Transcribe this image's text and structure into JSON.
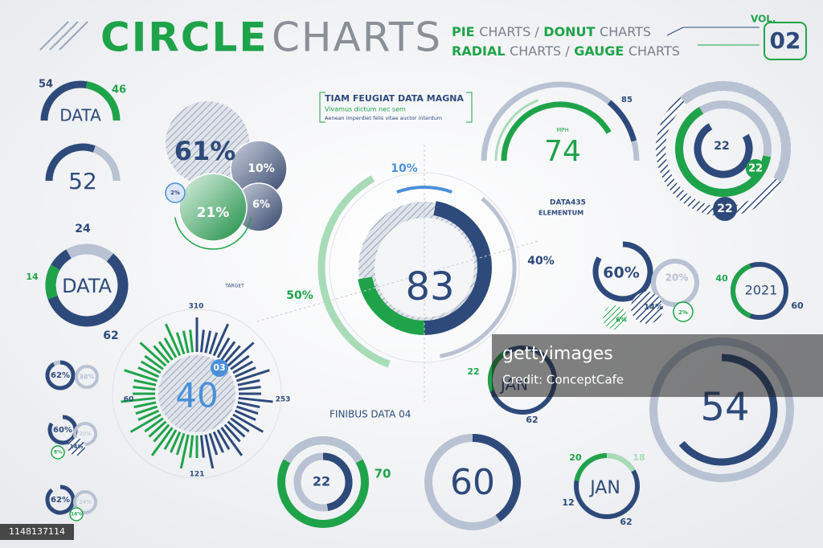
{
  "header": {
    "title_bold": "CIRCLE",
    "title_light": "CHARTS",
    "subtitle_1": [
      "PIE",
      "CHARTS /",
      "DONUT",
      "CHARTS"
    ],
    "subtitle_2": [
      "RADIAL",
      "CHARTS /",
      "GAUGE",
      "CHARTS"
    ],
    "vol_label": "VOL.",
    "vol_number": "02"
  },
  "widgets": [
    [
      "54",
      "46",
      "DATA"
    ],
    [
      "52"
    ],
    [
      "24",
      "14",
      "DATA",
      "62"
    ],
    [
      "62%",
      "38%"
    ],
    [
      "60%",
      "20%",
      "14%",
      "8%"
    ],
    [
      "62%",
      "24%",
      "14%"
    ],
    [
      "61%",
      "10%",
      "2%",
      "21%",
      "6%"
    ],
    [
      "TIAM FEUGIAT DATA MAGNA",
      "Vivamus dictum nec sem",
      "Aenean imperdiet felis vitae auctor interdum"
    ],
    [
      "83",
      "10%",
      "40%",
      "50%",
      "TARGET",
      "DATA435",
      "ELEMENTUM",
      "FINIBUS DATA 04"
    ],
    [
      "310",
      "60",
      "253",
      "121",
      "03",
      "40"
    ],
    [
      "85",
      "MPH",
      "74"
    ],
    [
      "22",
      "22",
      "22"
    ],
    [
      "60%",
      "20%",
      "14%",
      "6%",
      "2%"
    ],
    [
      "40",
      "2021",
      "60"
    ],
    [
      "22",
      "JAN",
      "62"
    ],
    [
      "54"
    ],
    [
      "22",
      "70"
    ],
    [
      "60"
    ],
    [
      "20",
      "18",
      "JAN",
      "12",
      "62"
    ]
  ],
  "watermark": {
    "brand": "gettyimages",
    "credit": "Credit: ConceptCafe",
    "image_id": "1148137114"
  }
}
